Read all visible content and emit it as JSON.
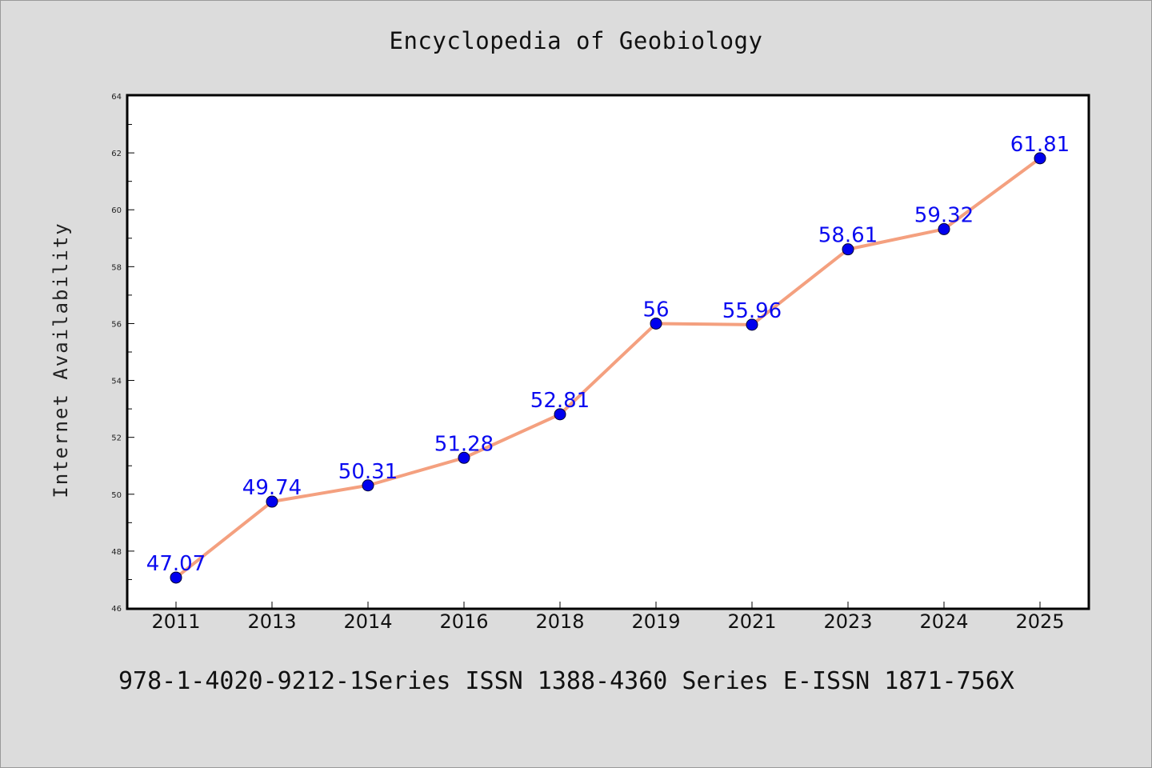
{
  "chart_data": {
    "type": "line",
    "title": "Encyclopedia of Geobiology",
    "xlabel": "",
    "ylabel": "Internet Availability",
    "categories": [
      "2011",
      "2013",
      "2014",
      "2016",
      "2018",
      "2019",
      "2021",
      "2023",
      "2024",
      "2025"
    ],
    "series": [
      {
        "values": [
          47.07,
          49.74,
          50.31,
          51.28,
          52.81,
          56,
          55.96,
          58.61,
          59.32,
          61.81
        ],
        "labels": [
          "47.07",
          "49.74",
          "50.31",
          "51.28",
          "52.81",
          "56",
          "55.96",
          "58.61",
          "59.32",
          "61.81"
        ]
      }
    ],
    "ylim": [
      46,
      64
    ],
    "yticks": [
      46,
      48,
      50,
      52,
      54,
      56,
      58,
      60,
      62,
      64
    ],
    "grid": false,
    "colors": {
      "line": "#f4a07f",
      "marker": "#0000ee",
      "label": "#0a0af0",
      "axes_border": "#000000",
      "plot_bg": "#ffffff",
      "page_bg": "#dcdcdc"
    }
  },
  "footer_note": "978-1-4020-9212-1Series ISSN 1388-4360 Series E-ISSN 1871-756X"
}
